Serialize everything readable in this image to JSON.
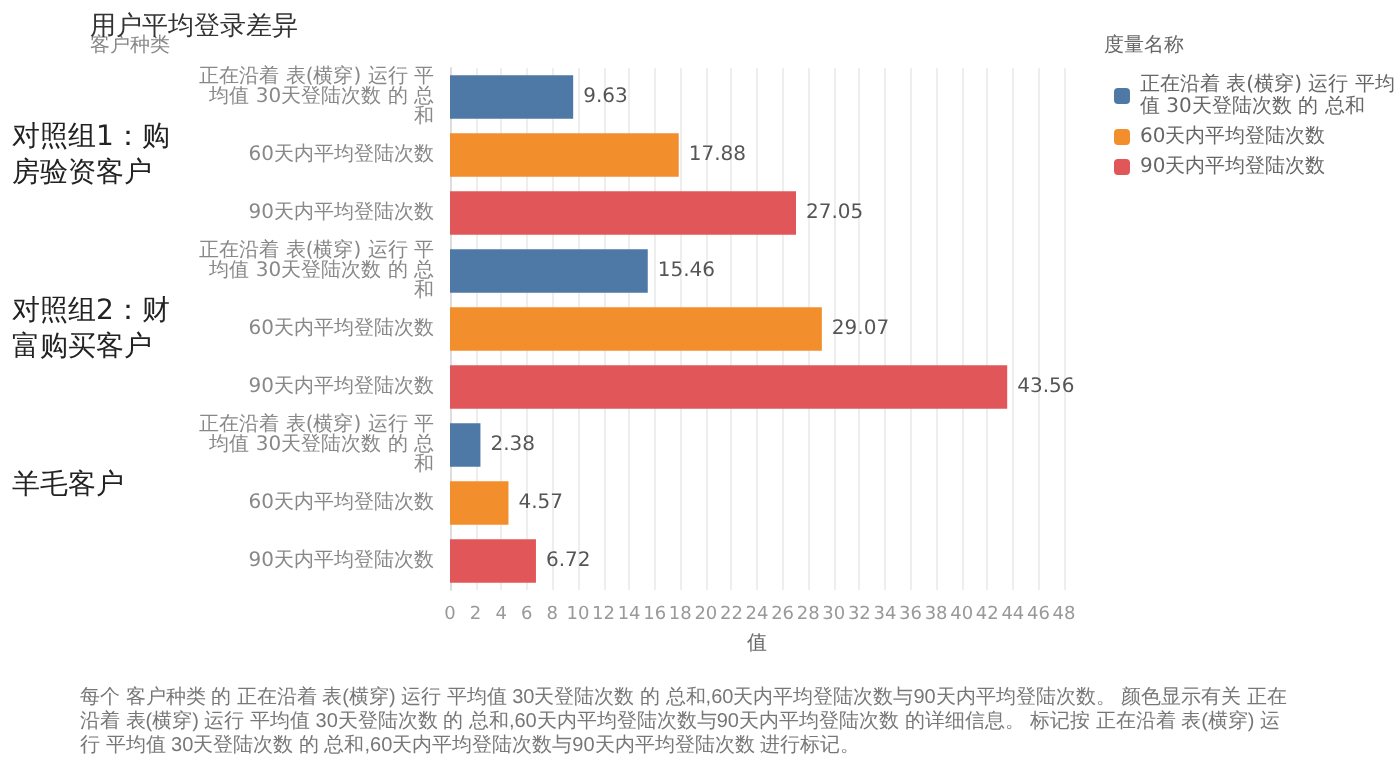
{
  "chart_data": {
    "type": "bar",
    "orientation": "horizontal",
    "stacked": true,
    "title": "用户平均登录差异",
    "ylabel": "客户种类",
    "xlabel": "值",
    "legend_title": "度量名称",
    "categories": [
      "正在沿着 表(横穿) 运行 平均值 30天登陆次数 的 总和",
      "60天内平均登陆次数",
      "90天内平均登陆次数",
      "正在沿着 表(横穿) 运行 平均值 30天登陆次数 的 总和",
      "60天内平均登陆次数",
      "90天内平均登陆次数",
      "正在沿着 表(横穿) 运行 平均值 30天登陆次数 的 总和",
      "60天内平均登陆次数",
      "90天内平均登陆次数"
    ],
    "series": [
      {
        "name": "正在沿着 表(横穿) 运行 平均值 30天登陆次数 的 总和",
        "color": "#4e79a7",
        "values": [
          9.63,
          null,
          null,
          15.46,
          null,
          null,
          2.38,
          null,
          null
        ]
      },
      {
        "name": "60天内平均登陆次数",
        "color": "#f28e2b",
        "values": [
          null,
          17.88,
          null,
          null,
          29.07,
          null,
          null,
          4.57,
          null
        ]
      },
      {
        "name": "90天内平均登陆次数",
        "color": "#e15759",
        "values": [
          null,
          null,
          27.05,
          null,
          null,
          43.56,
          null,
          null,
          6.72
        ]
      }
    ],
    "xlim": [
      0,
      48
    ],
    "xticks": [
      0,
      2,
      4,
      6,
      8,
      10,
      12,
      14,
      16,
      18,
      20,
      22,
      24,
      26,
      28,
      30,
      32,
      34,
      36,
      38,
      40,
      42,
      44,
      46,
      48
    ],
    "grid": "x",
    "legend": "top right",
    "data_labels": true,
    "annotations": [
      "对照组1：购房验资客户",
      "对照组2：财富购买客户",
      "羊毛客户",
      "每个 客户种类 的 正在沿着 表(横穿) 运行 平均值 30天登陆次数 的 总和,60天内平均登陆次数与90天内平均登陆次数。 颜色显示有关 正在沿着 表(横穿) 运行 平均值 30天登陆次数 的 总和,60天内平均登陆次数与90天内平均登陆次数 的详细信息。 标记按 正在沿着 表(横穿) 运行 平均值 30天登陆次数 的 总和,60天内平均登陆次数与90天内平均登陆次数 进行标记。"
    ]
  }
}
